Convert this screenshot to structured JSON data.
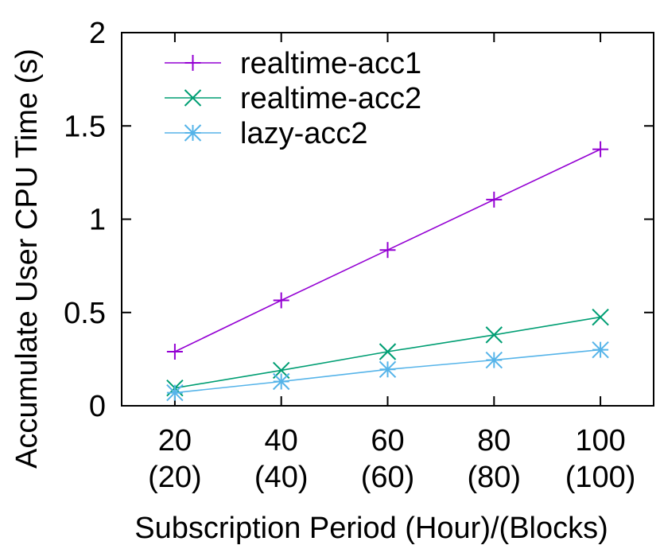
{
  "chart_data": {
    "type": "line",
    "xlabel": "Subscription Period (Hour)/(Blocks)",
    "ylabel": "Accumulate User CPU Time (s)",
    "ylim": [
      0,
      2
    ],
    "xlim": [
      10,
      110
    ],
    "yticks": [
      "0",
      "0.5",
      "1",
      "1.5",
      "2"
    ],
    "x": [
      20,
      40,
      60,
      80,
      100
    ],
    "x_tick_labels": [
      {
        "top": "20",
        "bottom": "(20)"
      },
      {
        "top": "40",
        "bottom": "(40)"
      },
      {
        "top": "60",
        "bottom": "(60)"
      },
      {
        "top": "80",
        "bottom": "(80)"
      },
      {
        "top": "100",
        "bottom": "(100)"
      }
    ],
    "grid": false,
    "legend_position": "top-left",
    "series": [
      {
        "name": "realtime-acc1",
        "color": "#9400d3",
        "marker": "plus",
        "values": [
          0.29,
          0.565,
          0.835,
          1.105,
          1.375
        ]
      },
      {
        "name": "realtime-acc2",
        "color": "#009e73",
        "marker": "cross",
        "values": [
          0.095,
          0.19,
          0.29,
          0.38,
          0.475
        ]
      },
      {
        "name": "lazy-acc2",
        "color": "#56b4e9",
        "marker": "star",
        "values": [
          0.07,
          0.13,
          0.195,
          0.245,
          0.3
        ]
      }
    ]
  }
}
